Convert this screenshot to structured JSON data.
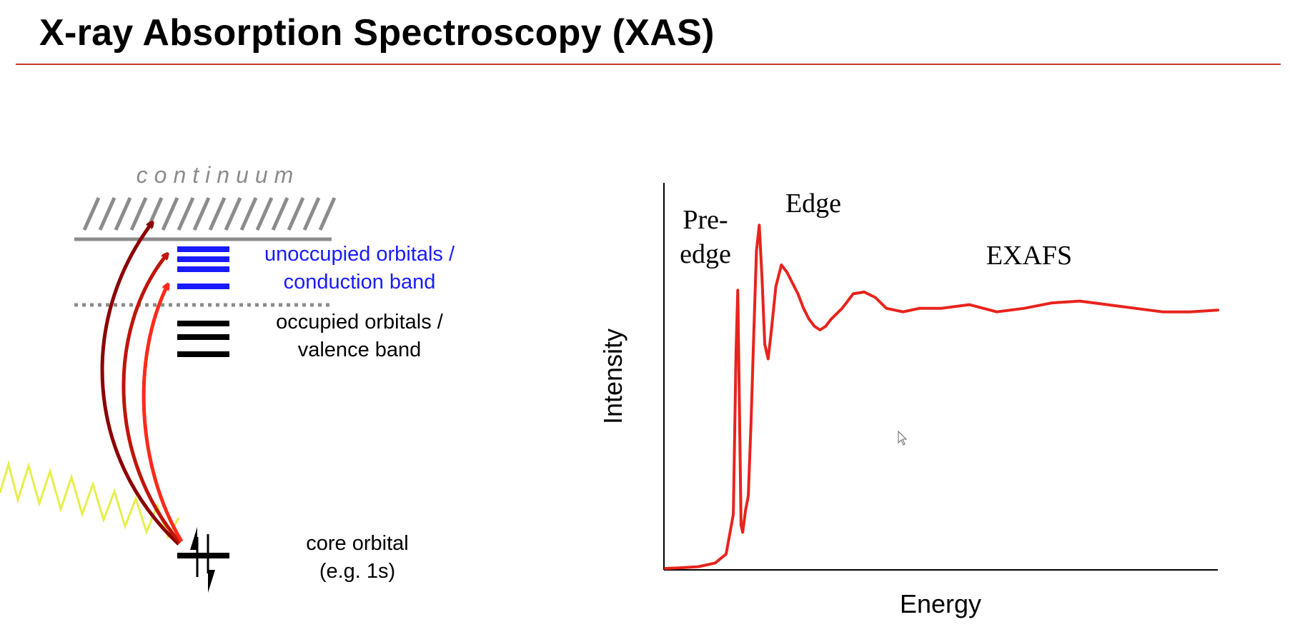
{
  "slide": {
    "title": "X-ray Absorption Spectroscopy (XAS)"
  },
  "diagram": {
    "continuum_label": "continuum",
    "unoccupied_line1": "unoccupied orbitals /",
    "unoccupied_line2": "conduction band",
    "occupied_line1": "occupied orbitals /",
    "occupied_line2": "valence band",
    "core_line1": "core orbital",
    "core_line2": "(e.g. 1s)",
    "colors": {
      "continuum": "#8c8c8c",
      "unoccupied": "#1a1aff",
      "occupied": "#000000",
      "xray_wave": "#e6ef4a",
      "arrow_dark": "#8b0000",
      "arrow_mid": "#c0140a",
      "arrow_bright": "#ff2a1a"
    }
  },
  "chart_data": {
    "type": "line",
    "xlabel": "Energy",
    "ylabel": "Intensity",
    "region_labels": {
      "preedge_line1": "Pre-",
      "preedge_line2": "edge",
      "edge": "Edge",
      "exafs": "EXAFS"
    },
    "series_color": "#e8231c",
    "x": [
      0,
      0.03,
      0.06,
      0.09,
      0.11,
      0.123,
      0.128,
      0.131,
      0.134,
      0.137,
      0.14,
      0.145,
      0.15,
      0.155,
      0.16,
      0.165,
      0.17,
      0.175,
      0.18,
      0.186,
      0.192,
      0.2,
      0.21,
      0.22,
      0.23,
      0.24,
      0.25,
      0.26,
      0.27,
      0.28,
      0.29,
      0.3,
      0.32,
      0.34,
      0.36,
      0.38,
      0.4,
      0.43,
      0.46,
      0.5,
      0.55,
      0.6,
      0.65,
      0.7,
      0.75,
      0.8,
      0.85,
      0.9,
      0.95,
      1.0
    ],
    "y": [
      0,
      0.002,
      0.005,
      0.015,
      0.04,
      0.15,
      0.6,
      0.77,
      0.45,
      0.12,
      0.1,
      0.16,
      0.2,
      0.4,
      0.65,
      0.88,
      0.95,
      0.8,
      0.62,
      0.58,
      0.66,
      0.78,
      0.84,
      0.82,
      0.79,
      0.76,
      0.72,
      0.69,
      0.67,
      0.66,
      0.67,
      0.69,
      0.72,
      0.76,
      0.765,
      0.75,
      0.72,
      0.71,
      0.72,
      0.72,
      0.73,
      0.71,
      0.72,
      0.735,
      0.74,
      0.73,
      0.72,
      0.71,
      0.71,
      0.715
    ],
    "ylim": [
      0,
      1
    ],
    "grid": false
  }
}
